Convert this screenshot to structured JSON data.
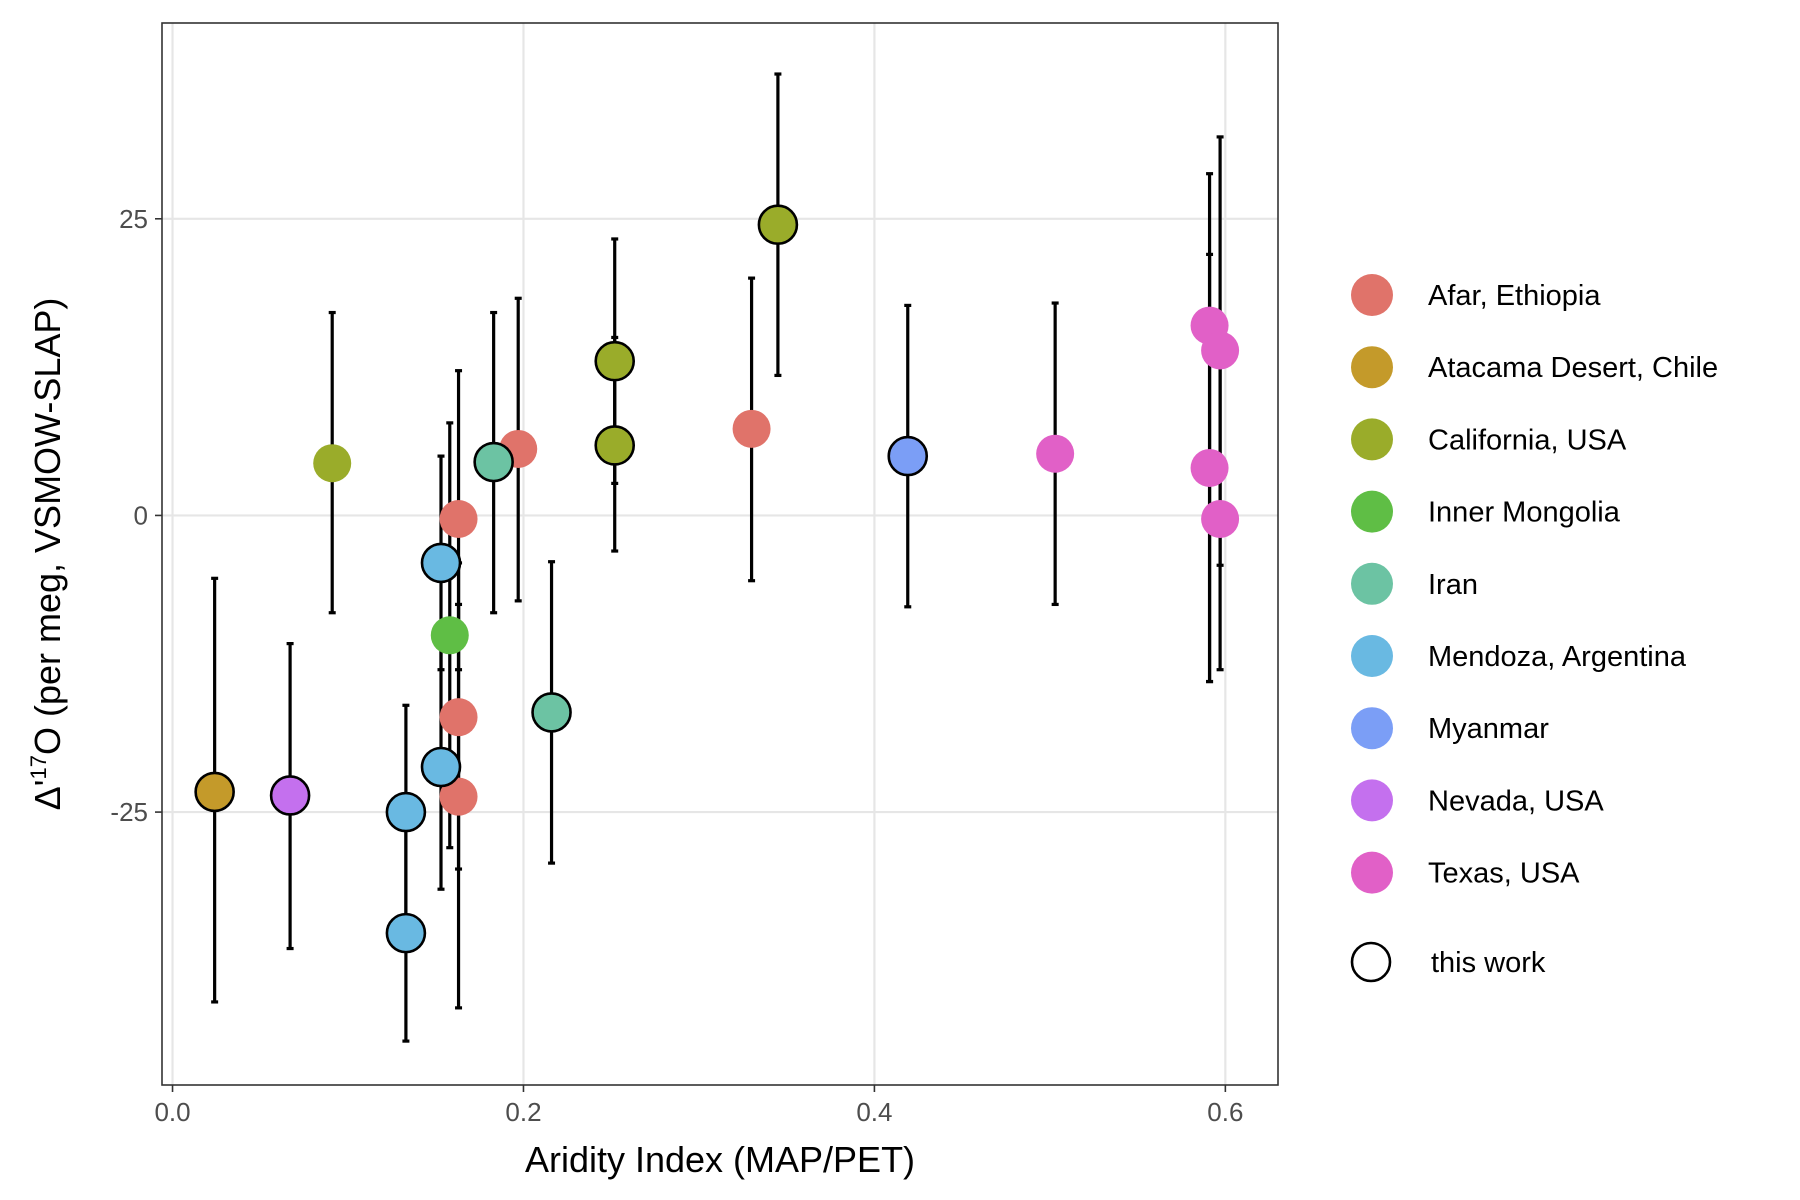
{
  "chart_data": {
    "type": "scatter",
    "xlabel": "Aridity Index (MAP/PET)",
    "ylabel_prefix": "Δ'",
    "ylabel_sup": "17",
    "ylabel_suffix": "O (per meg, VSMOW-SLAP)",
    "xlim": [
      -0.006,
      0.63
    ],
    "ylim": [
      -48,
      41.5
    ],
    "xticks": [
      0.0,
      0.2,
      0.4,
      0.6
    ],
    "xtick_labels": [
      "0.0",
      "0.2",
      "0.4",
      "0.6"
    ],
    "yticks": [
      -25,
      0,
      25
    ],
    "ytick_labels": [
      "-25",
      "0",
      "25"
    ],
    "grid": true,
    "legend_placement": "right",
    "series": [
      {
        "name": "Afar, Ethiopia",
        "color": "#E0736A",
        "points": [
          {
            "x": 0.197,
            "y": 5.6,
            "ylow": -7.2,
            "yhigh": 18.3,
            "this_work": false
          },
          {
            "x": 0.163,
            "y": -0.3,
            "ylow": -13.0,
            "yhigh": 12.2,
            "this_work": false
          },
          {
            "x": 0.163,
            "y": -17.0,
            "ylow": -29.8,
            "yhigh": -4.0,
            "this_work": false
          },
          {
            "x": 0.163,
            "y": -23.7,
            "ylow": -41.5,
            "yhigh": -7.5,
            "this_work": false
          },
          {
            "x": 0.33,
            "y": 7.3,
            "ylow": -5.5,
            "yhigh": 20.0,
            "this_work": false
          }
        ]
      },
      {
        "name": "Atacama Desert, Chile",
        "color": "#C49A2A",
        "points": [
          {
            "x": 0.024,
            "y": -23.3,
            "ylow": -41.0,
            "yhigh": -5.3,
            "this_work": true
          }
        ]
      },
      {
        "name": "California, USA",
        "color": "#9AAC2A",
        "points": [
          {
            "x": 0.091,
            "y": 4.4,
            "ylow": -8.2,
            "yhigh": 17.1,
            "this_work": false
          },
          {
            "x": 0.252,
            "y": 13.0,
            "ylow": 2.7,
            "yhigh": 23.3,
            "this_work": true
          },
          {
            "x": 0.252,
            "y": 5.9,
            "ylow": -3.0,
            "yhigh": 15.0,
            "this_work": true
          },
          {
            "x": 0.345,
            "y": 24.5,
            "ylow": 11.8,
            "yhigh": 37.2,
            "this_work": true
          }
        ]
      },
      {
        "name": "Inner Mongolia",
        "color": "#5FBE45",
        "points": [
          {
            "x": 0.158,
            "y": -10.1,
            "ylow": -28.0,
            "yhigh": 7.8,
            "this_work": false
          }
        ]
      },
      {
        "name": "Iran",
        "color": "#6CC3A3",
        "points": [
          {
            "x": 0.183,
            "y": 4.5,
            "ylow": -8.2,
            "yhigh": 17.1,
            "this_work": true
          },
          {
            "x": 0.216,
            "y": -16.6,
            "ylow": -29.3,
            "yhigh": -3.9,
            "this_work": true
          }
        ]
      },
      {
        "name": "Mendoza, Argentina",
        "color": "#69B9E2",
        "points": [
          {
            "x": 0.153,
            "y": -4.0,
            "ylow": -13.0,
            "yhigh": 5.0,
            "this_work": true
          },
          {
            "x": 0.153,
            "y": -21.2,
            "ylow": -31.5,
            "yhigh": -10.8,
            "this_work": true
          },
          {
            "x": 0.133,
            "y": -25.0,
            "ylow": -35.0,
            "yhigh": -16.0,
            "this_work": true
          },
          {
            "x": 0.133,
            "y": -35.2,
            "ylow": -44.3,
            "yhigh": -25.0,
            "this_work": true
          }
        ]
      },
      {
        "name": "Myanmar",
        "color": "#7B9EF6",
        "points": [
          {
            "x": 0.419,
            "y": 5.0,
            "ylow": -7.7,
            "yhigh": 17.7,
            "this_work": true
          }
        ]
      },
      {
        "name": "Nevada, USA",
        "color": "#C470EE",
        "points": [
          {
            "x": 0.067,
            "y": -23.6,
            "ylow": -36.5,
            "yhigh": -10.8,
            "this_work": true
          }
        ]
      },
      {
        "name": "Texas, USA",
        "color": "#E160C7",
        "points": [
          {
            "x": 0.503,
            "y": 5.2,
            "ylow": -7.5,
            "yhigh": 17.9,
            "this_work": false
          },
          {
            "x": 0.591,
            "y": 16.0,
            "ylow": -14.0,
            "yhigh": 28.8,
            "this_work": false
          },
          {
            "x": 0.591,
            "y": 4.0,
            "ylow": -14.0,
            "yhigh": 22.0,
            "this_work": false
          },
          {
            "x": 0.597,
            "y": 13.9,
            "ylow": -4.2,
            "yhigh": 31.9,
            "this_work": false
          },
          {
            "x": 0.597,
            "y": -0.3,
            "ylow": -13.0,
            "yhigh": 12.5,
            "this_work": false
          }
        ]
      }
    ],
    "legend_outline_label": "this work"
  }
}
